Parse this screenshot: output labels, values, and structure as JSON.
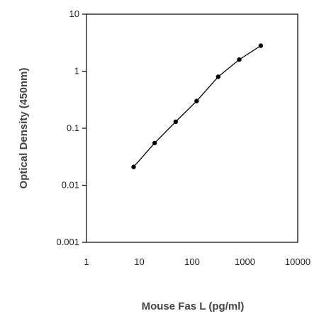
{
  "chart_data": {
    "type": "line",
    "title": "",
    "xlabel": "Mouse Fas L  (pg/ml)",
    "ylabel": "Optical Density (450nm)",
    "xscale": "log",
    "yscale": "log",
    "xlim": [
      1,
      10000
    ],
    "ylim": [
      0.001,
      10
    ],
    "x_ticks": [
      1,
      10,
      100,
      1000,
      10000
    ],
    "x_tick_labels": [
      "1",
      "10",
      "100",
      "1000",
      "10000"
    ],
    "y_ticks": [
      0.001,
      0.01,
      0.1,
      1,
      10
    ],
    "y_tick_labels": [
      "0.001",
      "0.01",
      "0.1",
      "1",
      "10"
    ],
    "grid": false,
    "legend": "none",
    "series": [
      {
        "x": [
          7.8,
          19.5,
          48.8,
          122,
          312,
          781,
          2000
        ],
        "y": [
          0.021,
          0.055,
          0.13,
          0.3,
          0.8,
          1.6,
          2.8
        ],
        "color": "#000000"
      }
    ]
  }
}
